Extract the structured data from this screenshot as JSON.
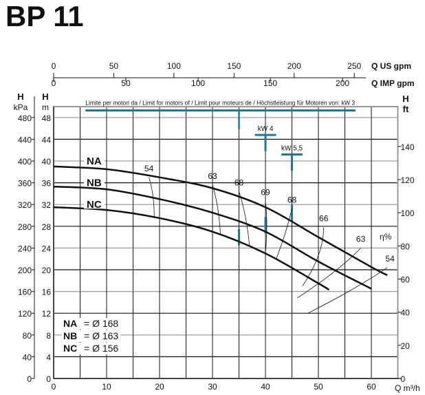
{
  "title": "BP 11",
  "chart_data": {
    "type": "line",
    "title": "BP 11",
    "xlabel": "Q m³/h",
    "xlim": [
      0,
      65
    ],
    "x_ticks": [
      0,
      10,
      20,
      30,
      40,
      50,
      60
    ],
    "ylim": [
      0,
      50
    ],
    "y_left_m_label": "H m",
    "y_left_m_ticks": [
      0,
      4,
      8,
      12,
      16,
      20,
      24,
      28,
      32,
      36,
      40,
      44,
      48
    ],
    "y_left_kpa_label": "H kPa",
    "y_left_kpa_ticks": [
      0,
      40,
      80,
      120,
      160,
      200,
      240,
      280,
      320,
      360,
      400,
      440,
      480
    ],
    "y_right_ft_label": "H ft",
    "y_right_ft_ticks": [
      0,
      20,
      40,
      60,
      80,
      100,
      120,
      140
    ],
    "top_axis_us": {
      "label": "Q US gpm",
      "ticks": [
        0,
        50,
        100,
        150,
        200,
        250
      ],
      "per_m3h": 4.403
    },
    "top_axis_imp": {
      "label": "Q IMP gpm",
      "ticks": [
        0,
        50,
        100,
        150,
        200
      ],
      "per_m3h": 3.666
    },
    "grid": true,
    "series": [
      {
        "name": "NA",
        "x": [
          0,
          10,
          20,
          30,
          40,
          50,
          60,
          63
        ],
        "y": [
          39,
          38.5,
          37,
          35,
          31.5,
          26,
          20.5,
          19
        ]
      },
      {
        "name": "NB",
        "x": [
          0,
          10,
          20,
          30,
          40,
          50,
          60
        ],
        "y": [
          35.3,
          34.8,
          33,
          30.5,
          27,
          21.5,
          16.5
        ]
      },
      {
        "name": "NC",
        "x": [
          0,
          10,
          20,
          30,
          40,
          50,
          52
        ],
        "y": [
          31.5,
          31,
          29.5,
          27,
          23,
          17.5,
          16.3
        ]
      }
    ],
    "legend": [
      {
        "key": "NA",
        "value": "= Ø 168"
      },
      {
        "key": "NB",
        "value": "= Ø 163"
      },
      {
        "key": "NC",
        "value": "= Ø 156"
      }
    ],
    "efficiency_label": "η%",
    "efficiency": [
      {
        "label": "54",
        "x": 18,
        "y": 38
      },
      {
        "label": "63",
        "x": 30,
        "y": 36.6
      },
      {
        "label": "68",
        "x": 35,
        "y": 35.4
      },
      {
        "label": "69",
        "x": 40,
        "y": 33.6
      },
      {
        "label": "68",
        "x": 45,
        "y": 32.2
      },
      {
        "label": "66",
        "x": 51,
        "y": 28.8
      },
      {
        "label": "63",
        "x": 58,
        "y": 25
      },
      {
        "label": "54",
        "x": 63,
        "y": 21.4
      }
    ],
    "motor_limit_text": "Limite per motori da / Limit for motors of / Limit pour moteurs de / Höchstleistung für Motoren von: kW 3",
    "motor_limits": [
      {
        "label": "kW 3",
        "q": 35
      },
      {
        "label": "kW 4",
        "q": 40
      },
      {
        "label": "kW 5,5",
        "q": 45
      }
    ],
    "accent_color": "#1a7a9e"
  }
}
